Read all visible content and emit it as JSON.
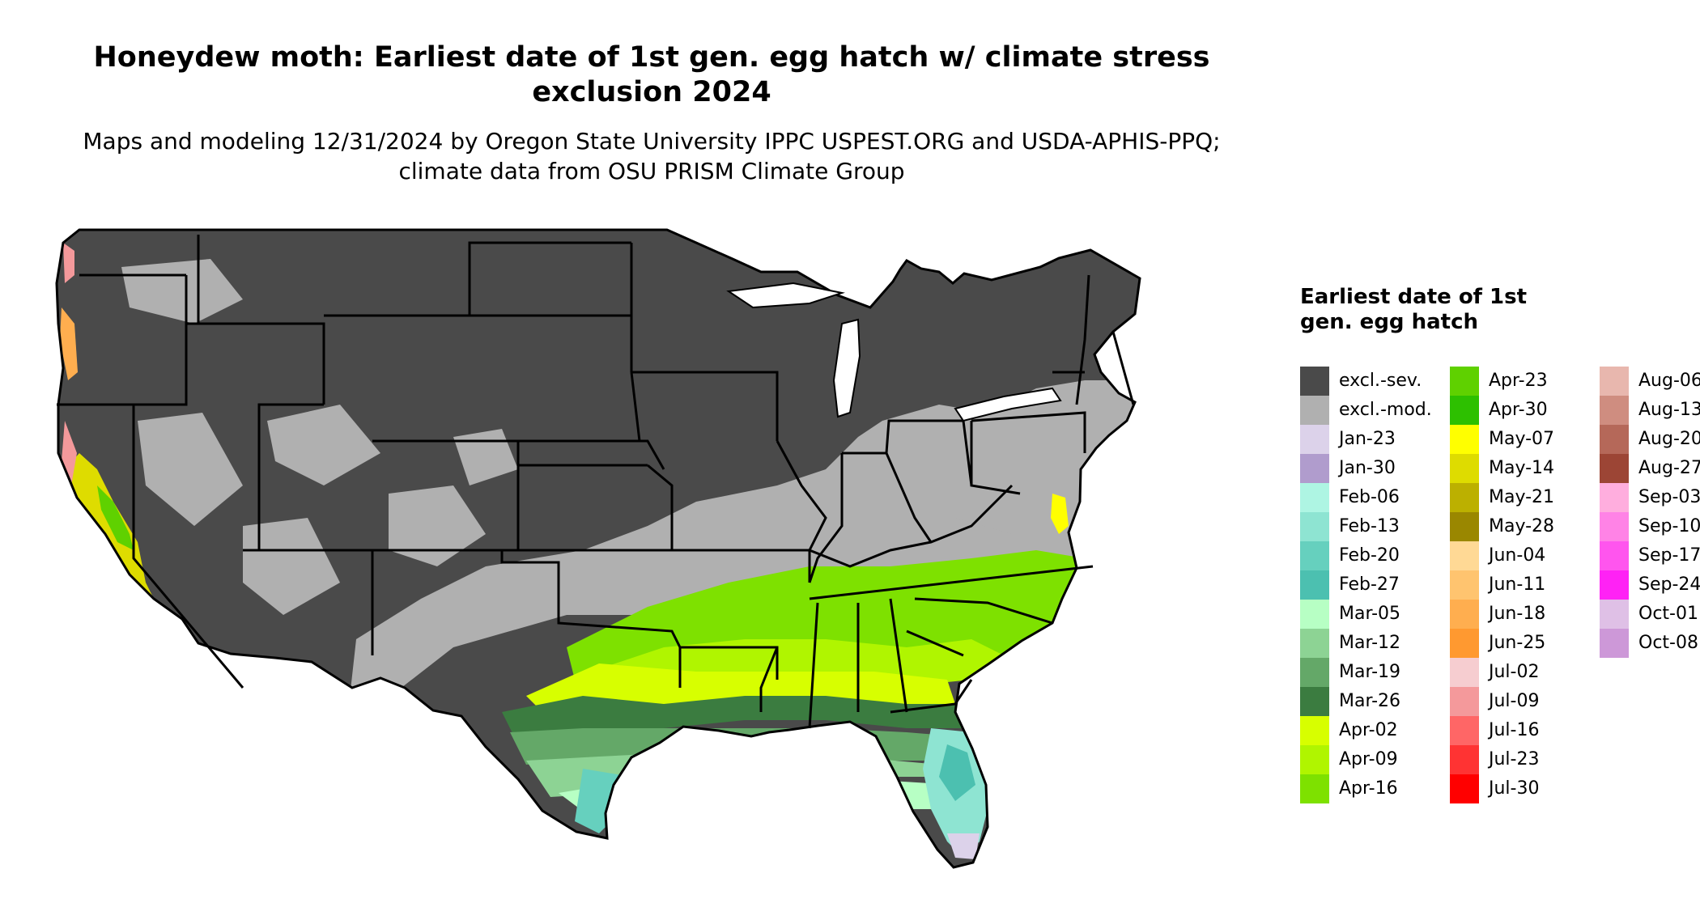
{
  "title": "Honeydew moth: Earliest date of 1st gen. egg hatch w/ climate stress exclusion 2024",
  "subtitle": "Maps and modeling 12/31/2024 by Oregon State University IPPC USPEST.ORG and USDA-APHIS-PPQ; climate data from OSU PRISM Climate Group",
  "legend": {
    "title": "Earliest date of 1st gen. egg hatch",
    "items": [
      {
        "label": "excl.-sev.",
        "color": "#4a4a4a"
      },
      {
        "label": "excl.-mod.",
        "color": "#b0b0b0"
      },
      {
        "label": "Jan-23",
        "color": "#dcd2ea"
      },
      {
        "label": "Jan-30",
        "color": "#b09ccd"
      },
      {
        "label": "Feb-06",
        "color": "#aef5e3"
      },
      {
        "label": "Feb-13",
        "color": "#8ee4d2"
      },
      {
        "label": "Feb-20",
        "color": "#66d0be"
      },
      {
        "label": "Feb-27",
        "color": "#4cc0b0"
      },
      {
        "label": "Mar-05",
        "color": "#b7ffc4"
      },
      {
        "label": "Mar-12",
        "color": "#8dd394"
      },
      {
        "label": "Mar-19",
        "color": "#64a868"
      },
      {
        "label": "Mar-26",
        "color": "#3b7c40"
      },
      {
        "label": "Apr-02",
        "color": "#d7ff00"
      },
      {
        "label": "Apr-09",
        "color": "#b0f500"
      },
      {
        "label": "Apr-16",
        "color": "#7ee100"
      },
      {
        "label": "Apr-23",
        "color": "#5fd100"
      },
      {
        "label": "Apr-30",
        "color": "#2dc000"
      },
      {
        "label": "May-07",
        "color": "#ffff00"
      },
      {
        "label": "May-14",
        "color": "#dedc00"
      },
      {
        "label": "May-21",
        "color": "#bcb000"
      },
      {
        "label": "May-28",
        "color": "#9a8700"
      },
      {
        "label": "Jun-04",
        "color": "#ffd995"
      },
      {
        "label": "Jun-11",
        "color": "#ffc46f"
      },
      {
        "label": "Jun-18",
        "color": "#ffae4f"
      },
      {
        "label": "Jun-25",
        "color": "#ff9930"
      },
      {
        "label": "Jul-02",
        "color": "#f6cdd0"
      },
      {
        "label": "Jul-09",
        "color": "#f4999b"
      },
      {
        "label": "Jul-16",
        "color": "#ff6666"
      },
      {
        "label": "Jul-23",
        "color": "#ff3333"
      },
      {
        "label": "Jul-30",
        "color": "#ff0000"
      },
      {
        "label": "Aug-06",
        "color": "#e8b7ae"
      },
      {
        "label": "Aug-13",
        "color": "#cf8d80"
      },
      {
        "label": "Aug-20",
        "color": "#b56859"
      },
      {
        "label": "Aug-27",
        "color": "#9c4535"
      },
      {
        "label": "Sep-03",
        "color": "#ffaede"
      },
      {
        "label": "Sep-10",
        "color": "#ff83e6"
      },
      {
        "label": "Sep-17",
        "color": "#ff55ee"
      },
      {
        "label": "Sep-24",
        "color": "#ff22f5"
      },
      {
        "label": "Oct-01",
        "color": "#dfc0e6"
      },
      {
        "label": "Oct-08",
        "color": "#cd98d8"
      }
    ]
  }
}
